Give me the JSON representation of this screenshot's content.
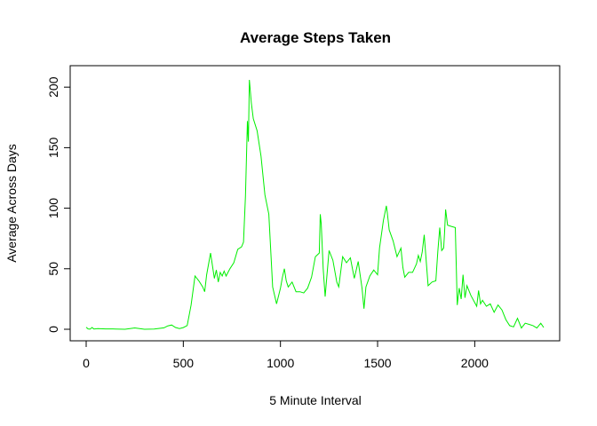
{
  "chart_data": {
    "type": "line",
    "title": "Average Steps Taken",
    "xlabel": "5 Minute Interval",
    "ylabel": "Average Across Days",
    "xlim": [
      0,
      2355
    ],
    "ylim": [
      0,
      206
    ],
    "x_ticks": [
      0,
      500,
      1000,
      1500,
      2000
    ],
    "y_ticks": [
      0,
      50,
      100,
      150,
      200
    ],
    "grid": false,
    "legend": "none",
    "line_color": "#00ee00",
    "series": [
      {
        "x": [
          0,
          10,
          20,
          30,
          40,
          60,
          100,
          150,
          200,
          250,
          300,
          350,
          400,
          420,
          440,
          460,
          480,
          500,
          520,
          540,
          560,
          580,
          600,
          610,
          620,
          640,
          660,
          670,
          680,
          690,
          700,
          710,
          720,
          740,
          760,
          780,
          800,
          810,
          820,
          830,
          835,
          840,
          850,
          860,
          880,
          900,
          920,
          940,
          960,
          980,
          1000,
          1010,
          1020,
          1030,
          1040,
          1060,
          1080,
          1100,
          1120,
          1140,
          1160,
          1180,
          1200,
          1205,
          1210,
          1220,
          1230,
          1250,
          1270,
          1290,
          1300,
          1320,
          1340,
          1360,
          1380,
          1400,
          1420,
          1430,
          1440,
          1460,
          1480,
          1500,
          1510,
          1530,
          1545,
          1550,
          1560,
          1580,
          1600,
          1620,
          1630,
          1640,
          1660,
          1680,
          1700,
          1710,
          1720,
          1730,
          1740,
          1760,
          1780,
          1800,
          1810,
          1820,
          1830,
          1840,
          1845,
          1850,
          1860,
          1880,
          1900,
          1910,
          1920,
          1930,
          1940,
          1950,
          1960,
          1980,
          2000,
          2010,
          2020,
          2030,
          2040,
          2060,
          2080,
          2100,
          2120,
          2140,
          2160,
          2180,
          2200,
          2220,
          2240,
          2260,
          2280,
          2300,
          2320,
          2340,
          2355
        ],
        "y": [
          1.7,
          0.3,
          0.1,
          1.5,
          0.2,
          0.5,
          0.3,
          0.2,
          0.0,
          1.1,
          0.0,
          0.2,
          1.2,
          2.8,
          3.5,
          1.5,
          0.6,
          1.4,
          3.1,
          20.0,
          44.0,
          40.0,
          35.0,
          31.0,
          45.0,
          63.0,
          42.0,
          49.0,
          39.0,
          47.0,
          44.0,
          48.0,
          44.0,
          50.0,
          55.0,
          66.0,
          68.0,
          72.0,
          110.0,
          172.0,
          155.0,
          206.0,
          187.0,
          174.0,
          164.0,
          143.0,
          111.0,
          95.0,
          35.0,
          21.0,
          34.0,
          43.0,
          50.0,
          40.0,
          35.0,
          39.0,
          31.0,
          31.0,
          30.0,
          34.0,
          43.0,
          60.0,
          63.0,
          95.0,
          87.0,
          50.0,
          27.0,
          65.0,
          57.0,
          39.0,
          35.0,
          60.0,
          55.0,
          59.0,
          42.0,
          56.0,
          34.0,
          17.0,
          35.0,
          44.0,
          49.0,
          45.0,
          67.0,
          90.0,
          102.0,
          96.0,
          82.0,
          73.0,
          60.0,
          67.0,
          51.0,
          43.0,
          47.0,
          47.0,
          54.0,
          61.0,
          56.0,
          64.0,
          78.0,
          36.0,
          39.0,
          40.0,
          64.0,
          84.0,
          65.0,
          67.0,
          81.0,
          99.0,
          86.0,
          85.0,
          84.0,
          20.0,
          34.0,
          25.0,
          45.0,
          26.0,
          36.0,
          28.0,
          22.0,
          19.0,
          32.0,
          21.0,
          24.0,
          19.0,
          21.0,
          14.0,
          20.0,
          16.0,
          8.0,
          3.0,
          2.0,
          9.0,
          1.0,
          5.0,
          4.0,
          3.0,
          1.0,
          5.0,
          1.5
        ]
      }
    ]
  }
}
